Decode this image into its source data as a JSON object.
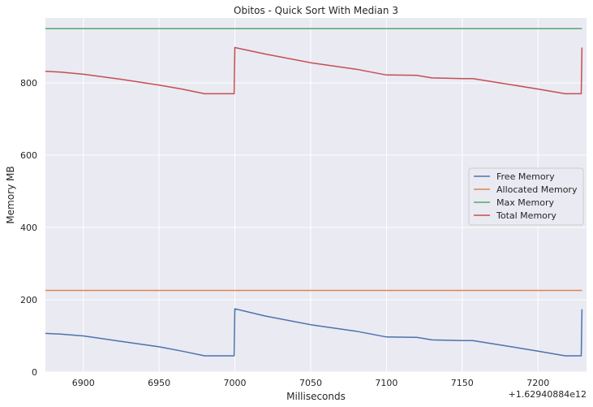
{
  "chart_data": {
    "type": "line",
    "title": "Obitos - Quick Sort With Median 3",
    "xlabel": "Milliseconds",
    "ylabel": "Memory MB",
    "x_offset_label": "+1.62940884e12",
    "xlim": [
      6875,
      7232
    ],
    "ylim": [
      0,
      980
    ],
    "x_ticks": [
      6900,
      6950,
      7000,
      7050,
      7100,
      7150,
      7200
    ],
    "y_ticks": [
      0,
      200,
      400,
      600,
      800
    ],
    "grid": true,
    "legend_position": "center-right",
    "background": "#eaeaf2",
    "series": [
      {
        "name": "Free Memory",
        "color": "#4c72b0",
        "x": [
          6875,
          6885,
          6900,
          6925,
          6950,
          6965,
          6980,
          6999.5,
          7000,
          7020,
          7050,
          7080,
          7100,
          7120,
          7130,
          7150,
          7157,
          7175,
          7200,
          7218,
          7228.5,
          7229
        ],
        "y": [
          107,
          105,
          100,
          85,
          70,
          58,
          45,
          45,
          175,
          155,
          131,
          113,
          97,
          96,
          89,
          87,
          87,
          75,
          58,
          45,
          45,
          174
        ]
      },
      {
        "name": "Allocated Memory",
        "color": "#dd8452",
        "x": [
          6875,
          7229
        ],
        "y": [
          226,
          226
        ]
      },
      {
        "name": "Max Memory",
        "color": "#55a868",
        "x": [
          6875,
          7229
        ],
        "y": [
          950,
          950
        ]
      },
      {
        "name": "Total Memory",
        "color": "#c44e52",
        "x": [
          6875,
          6885,
          6900,
          6925,
          6950,
          6965,
          6980,
          6999.5,
          7000,
          7020,
          7050,
          7080,
          7100,
          7120,
          7130,
          7150,
          7157,
          7175,
          7200,
          7218,
          7228.5,
          7229
        ],
        "y": [
          832,
          830,
          824,
          810,
          794,
          783,
          770,
          770,
          898,
          880,
          856,
          838,
          822,
          821,
          814,
          812,
          812,
          800,
          783,
          770,
          770,
          898
        ]
      }
    ]
  }
}
